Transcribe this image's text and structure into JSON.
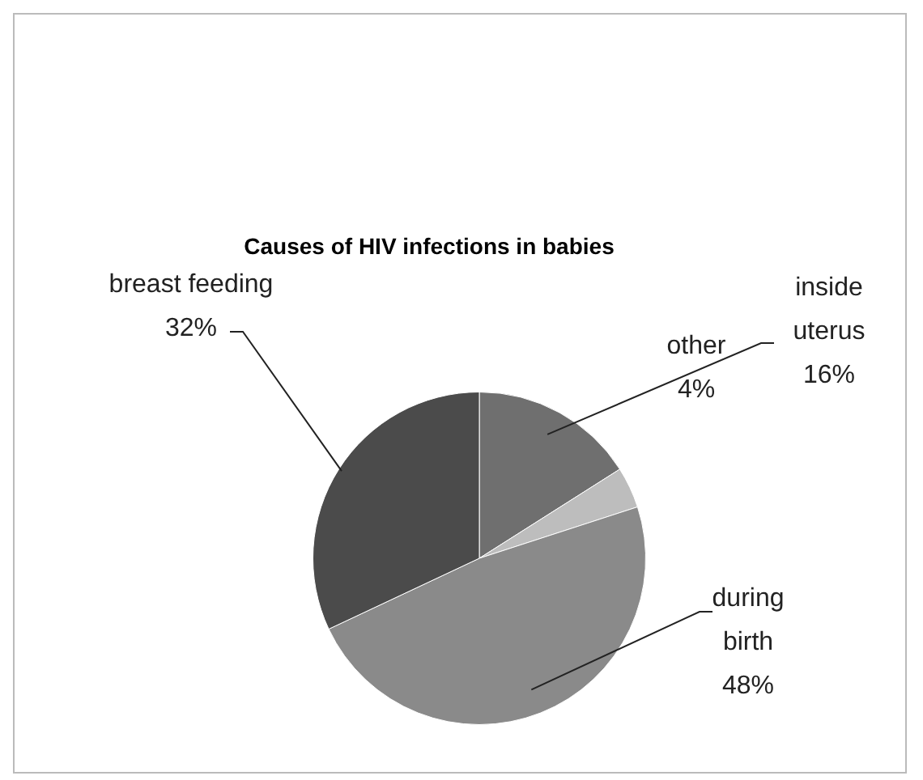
{
  "chart_data": {
    "type": "pie",
    "title": "Causes of HIV infections in babies",
    "categories": [
      "inside uterus",
      "other",
      "during birth",
      "breast feeding"
    ],
    "values": [
      16,
      4,
      48,
      32
    ],
    "colors": [
      "#6f6f6f",
      "#bdbdbd",
      "#8a8a8a",
      "#4b4b4b"
    ],
    "value_labels": [
      "16%",
      "4%",
      "48%",
      "32%"
    ],
    "legend": false
  }
}
